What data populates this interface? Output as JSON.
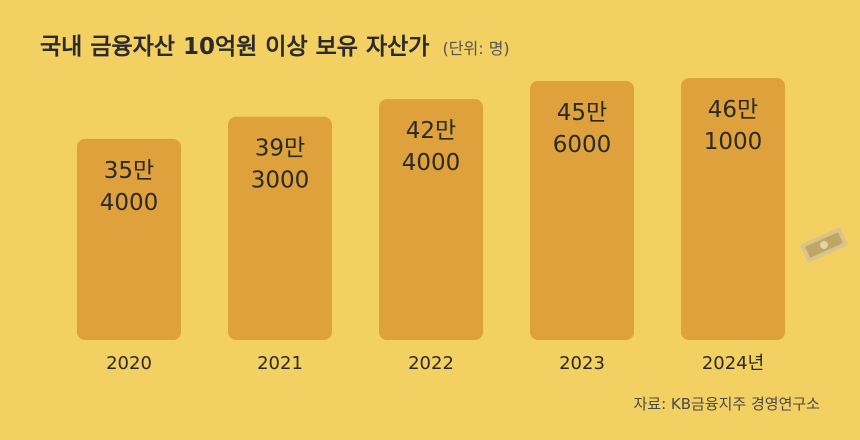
{
  "chart_data": {
    "type": "bar",
    "title": "국내 금융자산 10억원 이상 보유 자산가",
    "subtitle": "(단위: 명)",
    "categories": [
      "2020",
      "2021",
      "2022",
      "2023",
      "2024년"
    ],
    "values": [
      354000,
      393000,
      424000,
      456000,
      461000
    ],
    "data_labels": [
      [
        "35만",
        "4000"
      ],
      [
        "39만",
        "3000"
      ],
      [
        "42만",
        "4000"
      ],
      [
        "45만",
        "6000"
      ],
      [
        "46만",
        "1000"
      ]
    ],
    "xlabel": "",
    "ylabel": "",
    "ylim": [
      0,
      470000
    ],
    "grid": false,
    "legend": "none",
    "source": "자료: KB금융지주 경영연구소"
  },
  "colors": {
    "background": "#F3D062",
    "bar": "#DEA13B",
    "text": "#2a2a2a"
  }
}
